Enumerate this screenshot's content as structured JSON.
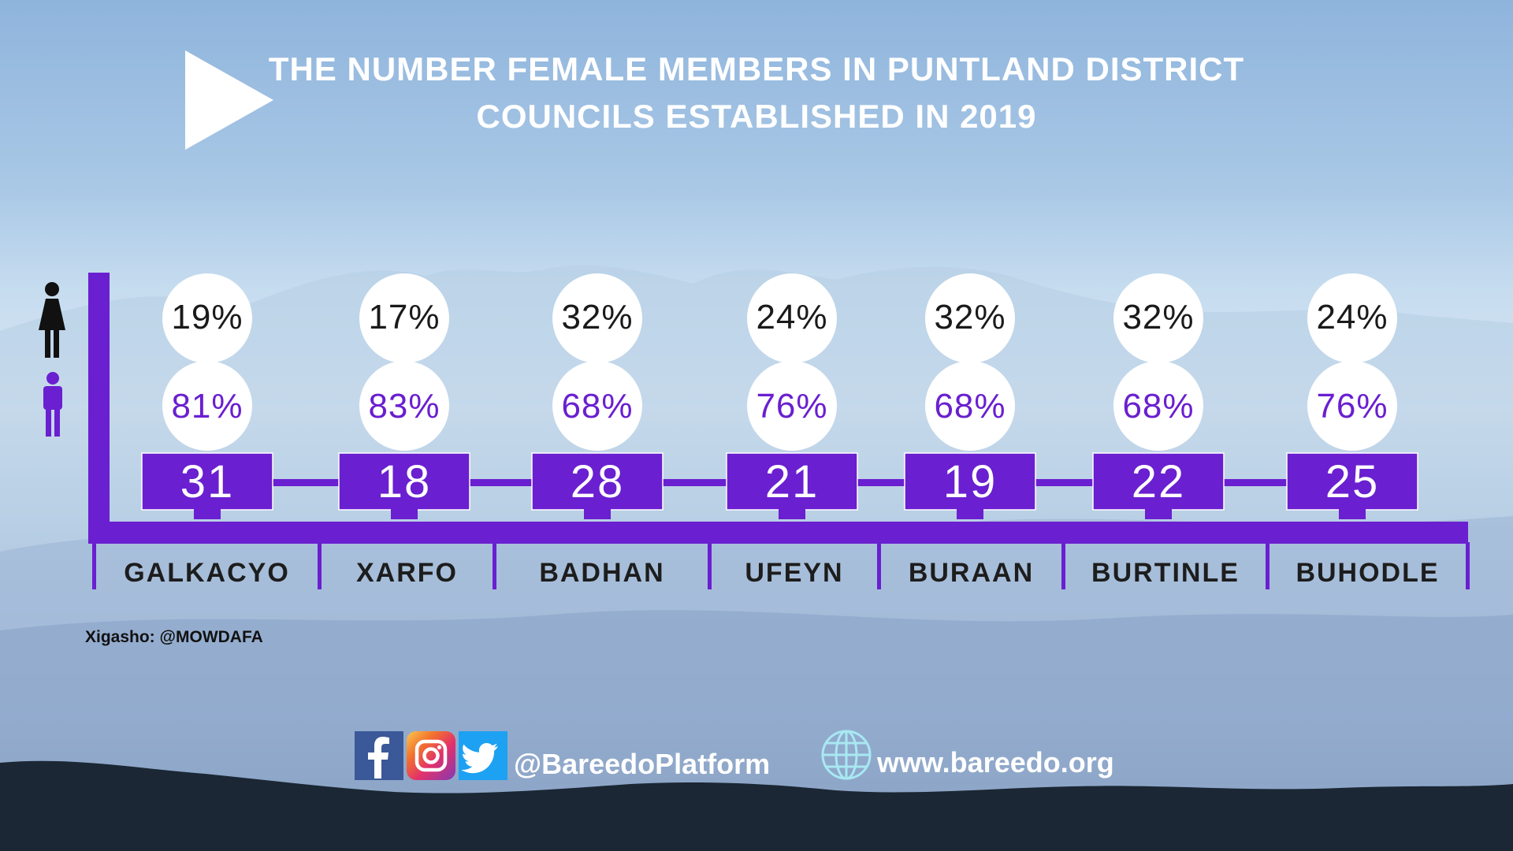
{
  "chart_data": {
    "type": "bar",
    "title": "THE NUMBER FEMALE MEMBERS IN PUNTLAND DISTRICT COUNCILS ESTABLISHED IN 2019",
    "categories": [
      "GALKACYO",
      "XARFO",
      "BADHAN",
      "UFEYN",
      "BURAAN",
      "BURTINLE",
      "BUHODLE"
    ],
    "totals": [
      31,
      18,
      28,
      21,
      19,
      22,
      25
    ],
    "total_labels": [
      "31",
      "18",
      "28",
      "21",
      "19",
      "22",
      "25"
    ],
    "female_pct": [
      "19%",
      "17%",
      "32%",
      "24%",
      "32%",
      "32%",
      "24%"
    ],
    "male_pct": [
      "81%",
      "83%",
      "68%",
      "76%",
      "68%",
      "68%",
      "76%"
    ]
  },
  "colors": {
    "accent": "#6a1fd0",
    "female_icon": "#111111",
    "male_icon": "#6a1fd0",
    "badge_text": "#ffffff"
  },
  "icons": {
    "play": "play-icon",
    "female": "female-icon",
    "male": "male-icon",
    "facebook": "facebook-icon",
    "instagram": "instagram-icon",
    "twitter": "twitter-icon",
    "globe": "globe-icon"
  },
  "footer": {
    "source": "Xigasho:  @MOWDAFA",
    "social_handle": "@BareedoPlatform",
    "website": "www.bareedo.org"
  }
}
